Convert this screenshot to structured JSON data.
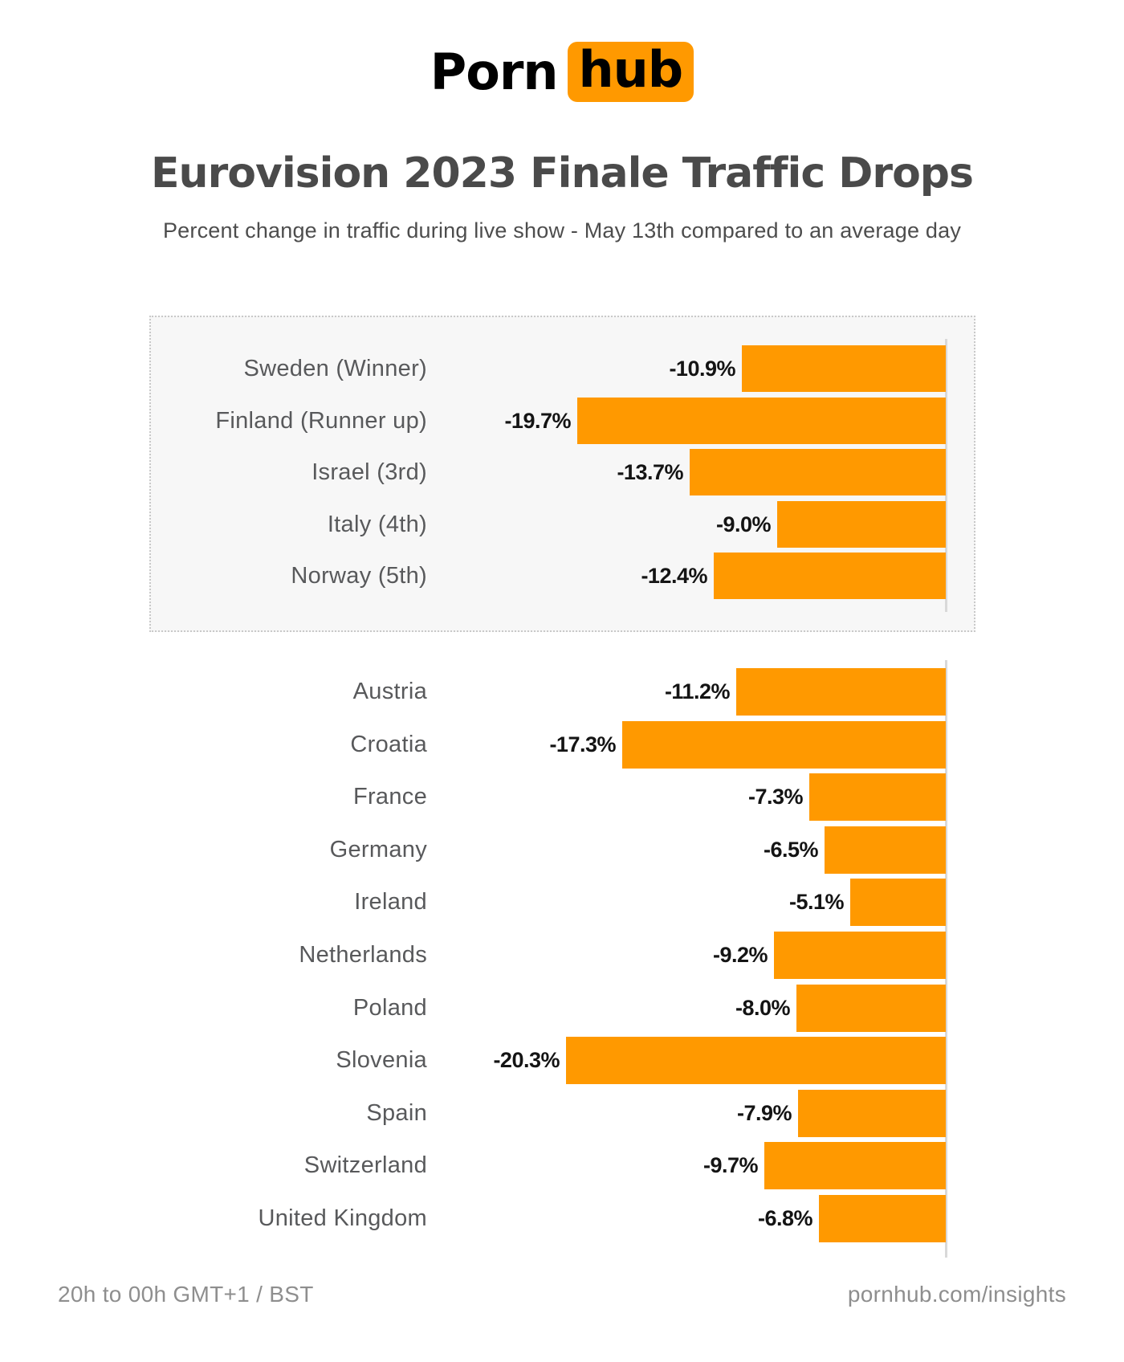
{
  "logo": {
    "part1": "Porn",
    "part2": "hub"
  },
  "header": {
    "title": "Eurovision 2023 Finale Traffic Drops",
    "subtitle": "Percent change in traffic during live show - May 13th compared to an average day"
  },
  "footer": {
    "left": "20h to 00h GMT+1 / BST",
    "right": "pornhub.com/insights"
  },
  "colors": {
    "bar_orange": "#FF9900",
    "logo_badge_orange": "#FF9900",
    "title_gray": "#4A4A4A",
    "country_label_gray": "#58595B",
    "value_label_black": "#141414",
    "box_background": "#F7F7F7",
    "box_border": "#C9C9C9",
    "axis_gray": "#D9D9D9",
    "footer_gray": "#8E8E8E"
  },
  "chart_data": {
    "type": "bar",
    "orientation": "horizontal",
    "unit": "percent",
    "title": "Eurovision 2023 Finale Traffic Drops",
    "subtitle": "Percent change in traffic during live show - May 13th compared to an average day",
    "value_axis_range": [
      -21,
      0
    ],
    "baseline": 0,
    "bars_extend": "left",
    "grid": false,
    "legend": false,
    "groups": [
      {
        "name": "finalists-top5",
        "highlighted": true,
        "rows": [
          {
            "label": "Sweden (Winner)",
            "value": -10.9,
            "value_label": "-10.9%"
          },
          {
            "label": "Finland (Runner up)",
            "value": -19.7,
            "value_label": "-19.7%"
          },
          {
            "label": "Israel (3rd)",
            "value": -13.7,
            "value_label": "-13.7%"
          },
          {
            "label": "Italy (4th)",
            "value": -9.0,
            "value_label": "-9.0%"
          },
          {
            "label": "Norway (5th)",
            "value": -12.4,
            "value_label": "-12.4%"
          }
        ]
      },
      {
        "name": "other-countries",
        "highlighted": false,
        "rows": [
          {
            "label": "Austria",
            "value": -11.2,
            "value_label": "-11.2%"
          },
          {
            "label": "Croatia",
            "value": -17.3,
            "value_label": "-17.3%"
          },
          {
            "label": "France",
            "value": -7.3,
            "value_label": "-7.3%"
          },
          {
            "label": "Germany",
            "value": -6.5,
            "value_label": "-6.5%"
          },
          {
            "label": "Ireland",
            "value": -5.1,
            "value_label": "-5.1%"
          },
          {
            "label": "Netherlands",
            "value": -9.2,
            "value_label": "-9.2%"
          },
          {
            "label": "Poland",
            "value": -8.0,
            "value_label": "-8.0%"
          },
          {
            "label": "Slovenia",
            "value": -20.3,
            "value_label": "-20.3%"
          },
          {
            "label": "Spain",
            "value": -7.9,
            "value_label": "-7.9%"
          },
          {
            "label": "Switzerland",
            "value": -9.7,
            "value_label": "-9.7%"
          },
          {
            "label": "United Kingdom",
            "value": -6.8,
            "value_label": "-6.8%"
          }
        ]
      }
    ]
  }
}
